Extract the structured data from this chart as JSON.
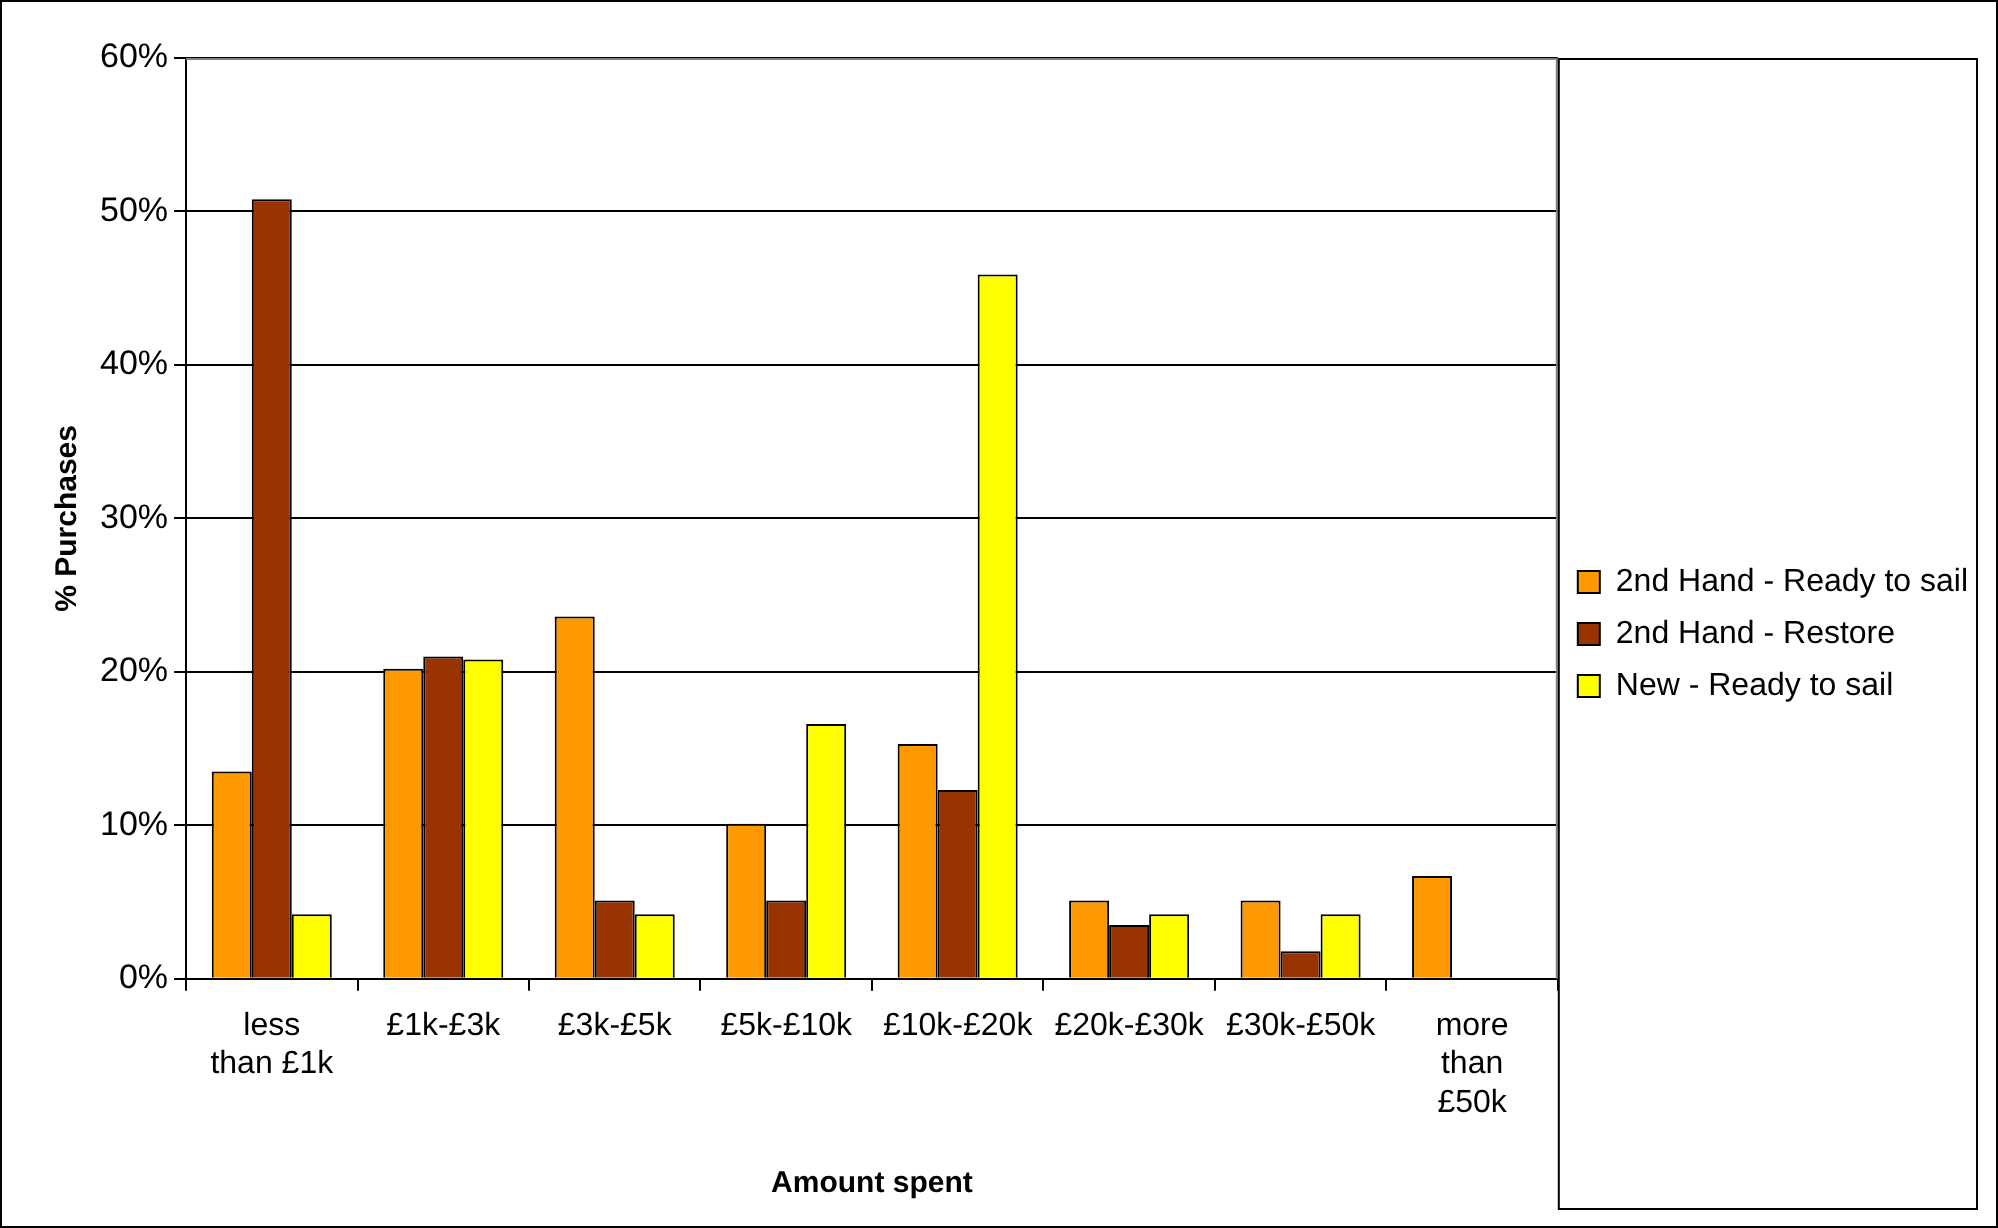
{
  "chart_data": {
    "type": "bar",
    "xlabel": "Amount spent",
    "ylabel": "% Purchases",
    "categories": [
      "less than £1k",
      "£1k-£3k",
      "£3k-£5k",
      "£5k-£10k",
      "£10k-£20k",
      "£20k-£30k",
      "£30k-£50k",
      "more than £50k"
    ],
    "series": [
      {
        "name": "2nd Hand - Ready to sail",
        "color": "#ff9900",
        "values": [
          13.5,
          20.2,
          23.6,
          10.1,
          15.3,
          5.1,
          5.1,
          6.7
        ]
      },
      {
        "name": "2nd Hand - Restore",
        "color": "#993300",
        "values": [
          50.8,
          21.0,
          5.1,
          5.1,
          12.3,
          3.5,
          1.8,
          null
        ]
      },
      {
        "name": "New - Ready to sail",
        "color": "#ffff00",
        "values": [
          4.2,
          20.8,
          4.2,
          16.6,
          45.9,
          4.2,
          4.2,
          null
        ]
      }
    ],
    "ylim": [
      0,
      60
    ],
    "yticks": [
      {
        "value": 0,
        "label": "0%"
      },
      {
        "value": 10,
        "label": "10%"
      },
      {
        "value": 20,
        "label": "20%"
      },
      {
        "value": 30,
        "label": "30%"
      },
      {
        "value": 40,
        "label": "40%"
      },
      {
        "value": 50,
        "label": "50%"
      },
      {
        "value": 60,
        "label": "60%"
      }
    ],
    "grid": "y",
    "legend": "right"
  }
}
